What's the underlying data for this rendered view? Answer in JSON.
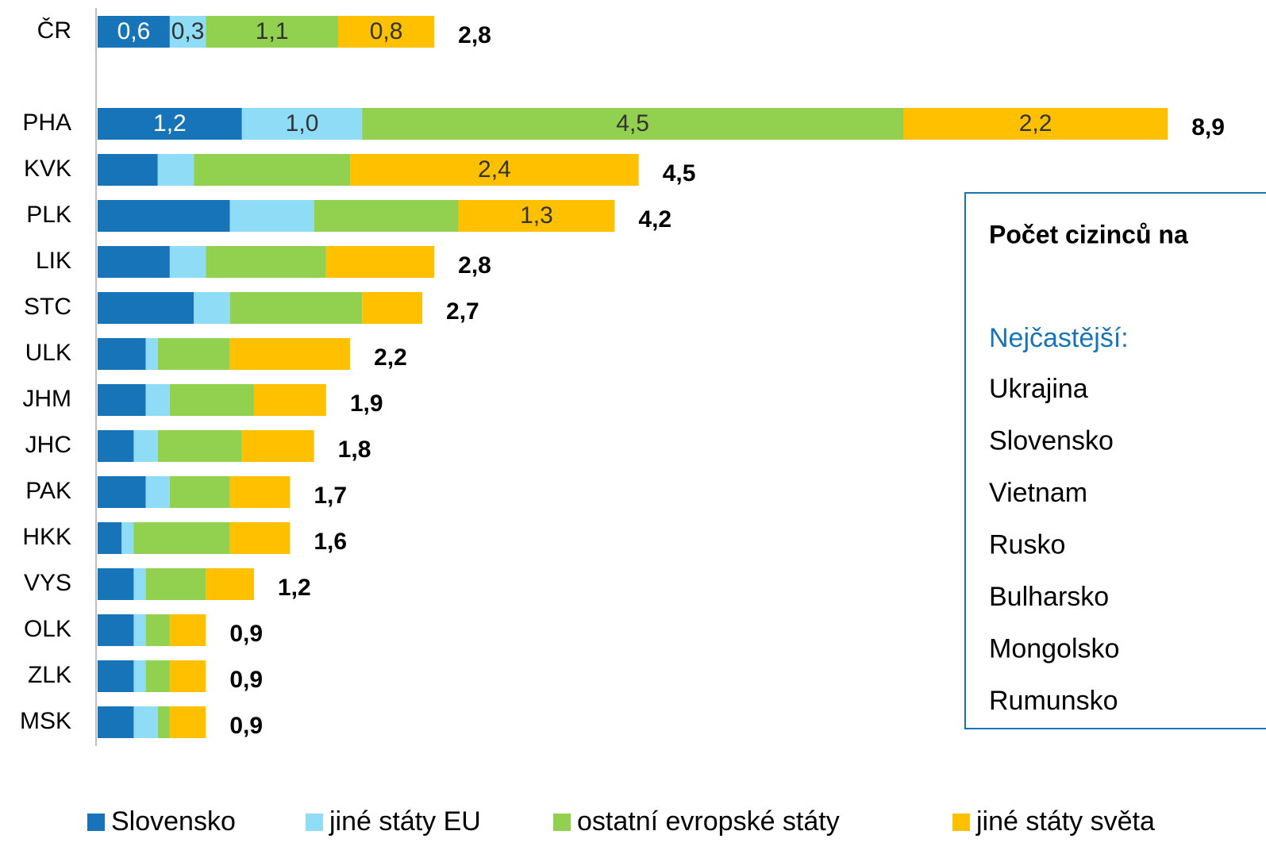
{
  "chart_data": {
    "type": "stacked-bar-horizontal",
    "categories": [
      "ČR",
      null,
      "PHA",
      "KVK",
      "PLK",
      "LIK",
      "STC",
      "ULK",
      "JHM",
      "JHC",
      "PAK",
      "HKK",
      "VYS",
      "OLK",
      "ZLK",
      "MSK"
    ],
    "xlim": [
      0,
      9.4
    ],
    "series": [
      {
        "name": "Slovensko",
        "color": "#1874b8",
        "values": [
          0.6,
          null,
          1.2,
          0.5,
          1.1,
          0.6,
          0.8,
          0.4,
          0.4,
          0.3,
          0.4,
          0.2,
          0.3,
          0.3,
          0.3,
          0.3
        ],
        "value_labels": [
          "0,6",
          null,
          "1,2",
          null,
          null,
          null,
          null,
          null,
          null,
          null,
          null,
          null,
          null,
          null,
          null,
          null
        ]
      },
      {
        "name": "jiné státy EU",
        "color": "#8fdcf7",
        "values": [
          0.3,
          null,
          1.0,
          0.3,
          0.7,
          0.3,
          0.3,
          0.1,
          0.2,
          0.2,
          0.2,
          0.1,
          0.1,
          0.1,
          0.1,
          0.2
        ],
        "value_labels": [
          "0,3",
          null,
          "1,0",
          null,
          null,
          null,
          null,
          null,
          null,
          null,
          null,
          null,
          null,
          null,
          null,
          null
        ]
      },
      {
        "name": "ostatní evropské státy",
        "color": "#92d050",
        "values": [
          1.1,
          null,
          4.5,
          1.3,
          1.2,
          1.0,
          1.1,
          0.6,
          0.7,
          0.7,
          0.5,
          0.8,
          0.5,
          0.2,
          0.2,
          0.1
        ],
        "value_labels": [
          "1,1",
          null,
          "4,5",
          null,
          null,
          null,
          null,
          null,
          null,
          null,
          null,
          null,
          null,
          null,
          null,
          null
        ]
      },
      {
        "name": "jiné státy světa",
        "color": "#ffc000",
        "values": [
          0.8,
          null,
          2.2,
          2.4,
          1.3,
          0.9,
          0.5,
          1.0,
          0.6,
          0.6,
          0.5,
          0.5,
          0.4,
          0.3,
          0.3,
          0.3
        ],
        "value_labels": [
          "0,8",
          null,
          "2,2",
          "2,4",
          "1,3",
          null,
          null,
          null,
          null,
          null,
          null,
          null,
          null,
          null,
          null,
          null
        ]
      }
    ],
    "totals": [
      2.8,
      null,
      8.9,
      4.5,
      4.2,
      2.8,
      2.7,
      2.2,
      1.9,
      1.8,
      1.7,
      1.6,
      1.2,
      0.9,
      0.9,
      0.9
    ],
    "total_labels": [
      "2,8",
      null,
      "8,9",
      "4,5",
      "4,2",
      "2,8",
      "2,7",
      "2,2",
      "1,9",
      "1,8",
      "1,7",
      "1,6",
      "1,2",
      "0,9",
      "0,9",
      "0,9"
    ],
    "legend": "bottom",
    "annotation": {
      "title": "Počet cizinců na",
      "subtitle": "Nejčastější:",
      "items": [
        "Ukrajina",
        "Slovensko",
        "Vietnam",
        "Rusko",
        "Bulharsko",
        "Mongolsko",
        "Rumunsko"
      ]
    }
  }
}
